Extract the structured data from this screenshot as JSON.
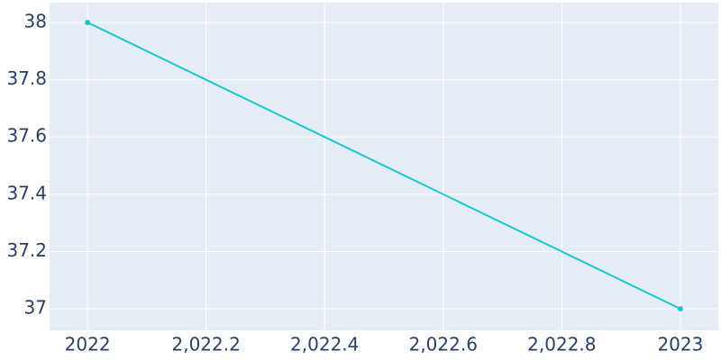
{
  "chart_data": {
    "type": "line",
    "x": [
      2022,
      2023
    ],
    "series": [
      {
        "color": "#17c9c9",
        "values": [
          38,
          37
        ]
      }
    ],
    "xlim": [
      2021.936,
      2023.064
    ],
    "xticks": [
      2022,
      {
        "value": 2022.2,
        "label": "2,022.2"
      },
      {
        "value": 2022.4,
        "label": "2,022.4"
      },
      {
        "value": 2022.6,
        "label": "2,022.6"
      },
      {
        "value": 2022.8,
        "label": "2,022.8"
      },
      2023
    ],
    "ylim": [
      36.925,
      38.069
    ],
    "yticks": [
      37,
      37.2,
      37.4,
      37.6,
      37.8,
      38
    ],
    "grid": true
  }
}
